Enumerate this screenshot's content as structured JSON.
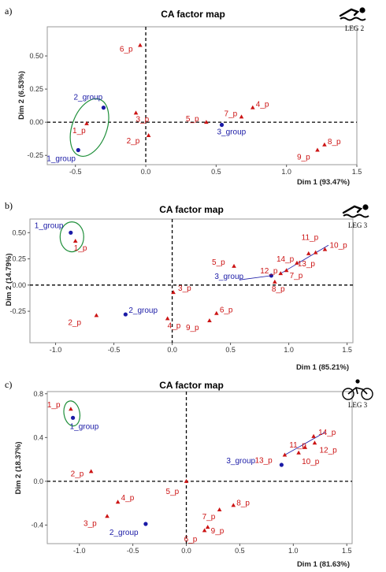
{
  "chart_data": [
    {
      "type": "scatter",
      "panel_label": "a)",
      "title": "CA factor map",
      "xlabel": "Dim 1 (93.47%)",
      "ylabel": "Dim 2 (6.53%)",
      "xlim": [
        -0.7,
        1.5
      ],
      "ylim": [
        -0.32,
        0.72
      ],
      "xticks": [
        -0.5,
        0.0,
        0.5,
        1.0,
        1.5
      ],
      "xticklabels": [
        "-0.5",
        "0.0",
        "0.5",
        "1.0",
        "1.5"
      ],
      "yticks": [
        -0.25,
        0.0,
        0.25,
        0.5
      ],
      "yticklabels": [
        "-0.25",
        "0.00",
        "0.25",
        "0.50"
      ],
      "legend_icon": "swimmer-icon",
      "legend_text": "LEG 2",
      "series": [
        {
          "name": "groups",
          "color": "#1a1aa6",
          "marker": "circle",
          "points": [
            {
              "label": "1_group",
              "x": -0.48,
              "y": -0.21
            },
            {
              "label": "2_group",
              "x": -0.3,
              "y": 0.11
            },
            {
              "label": "3_group",
              "x": 0.54,
              "y": -0.02
            }
          ]
        },
        {
          "name": "variables",
          "color": "#cc1414",
          "marker": "triangle",
          "points": [
            {
              "label": "1_p",
              "x": -0.42,
              "y": -0.01
            },
            {
              "label": "2_p",
              "x": 0.02,
              "y": -0.1
            },
            {
              "label": "3_p",
              "x": -0.07,
              "y": 0.07
            },
            {
              "label": "4_p",
              "x": 0.76,
              "y": 0.11
            },
            {
              "label": "5_p",
              "x": 0.43,
              "y": 0.0
            },
            {
              "label": "6_p",
              "x": -0.04,
              "y": 0.58
            },
            {
              "label": "7_p",
              "x": 0.68,
              "y": 0.04
            },
            {
              "label": "8_p",
              "x": 1.27,
              "y": -0.17
            },
            {
              "label": "9_p",
              "x": 1.22,
              "y": -0.21
            }
          ]
        }
      ]
    },
    {
      "type": "scatter",
      "panel_label": "b)",
      "title": "CA factor map",
      "xlabel": "Dim 1 (85.21%)",
      "ylabel": "Dim 2 (14.79%)",
      "xlim": [
        -1.22,
        1.55
      ],
      "ylim": [
        -0.55,
        0.63
      ],
      "xticks": [
        -1.0,
        -0.5,
        0.0,
        0.5,
        1.0,
        1.5
      ],
      "xticklabels": [
        "-1.0",
        "-0.5",
        "0.0",
        "0.5",
        "1.0",
        "1.5"
      ],
      "yticks": [
        -0.25,
        0.0,
        0.25,
        0.5
      ],
      "yticklabels": [
        "-0.25",
        "0.00",
        "0.25",
        "0.50"
      ],
      "legend_icon": "swimmer-icon",
      "legend_text": "LEG 3",
      "series": [
        {
          "name": "groups",
          "color": "#1a1aa6",
          "marker": "circle",
          "points": [
            {
              "label": "1_group",
              "x": -0.87,
              "y": 0.5
            },
            {
              "label": "2_group",
              "x": -0.4,
              "y": -0.28
            },
            {
              "label": "3_group",
              "x": 0.85,
              "y": 0.09
            }
          ]
        },
        {
          "name": "variables",
          "color": "#cc1414",
          "marker": "triangle",
          "points": [
            {
              "label": "1_p",
              "x": -0.83,
              "y": 0.42
            },
            {
              "label": "2_p",
              "x": -0.65,
              "y": -0.29
            },
            {
              "label": "3_p",
              "x": 0.01,
              "y": -0.07
            },
            {
              "label": "4_p",
              "x": -0.04,
              "y": -0.32
            },
            {
              "label": "5_p",
              "x": 0.53,
              "y": 0.18
            },
            {
              "label": "6_p",
              "x": 0.38,
              "y": -0.27
            },
            {
              "label": "7_p",
              "x": 0.98,
              "y": 0.14
            },
            {
              "label": "8_p",
              "x": 0.88,
              "y": 0.03
            },
            {
              "label": "9_p",
              "x": 0.32,
              "y": -0.34
            },
            {
              "label": "10_p",
              "x": 1.31,
              "y": 0.34
            },
            {
              "label": "11_p",
              "x": 1.23,
              "y": 0.31
            },
            {
              "label": "12_p",
              "x": 0.93,
              "y": 0.11
            },
            {
              "label": "13_p",
              "x": 1.17,
              "y": 0.3
            },
            {
              "label": "14_p",
              "x": 1.07,
              "y": 0.21
            }
          ]
        }
      ]
    },
    {
      "type": "scatter",
      "panel_label": "c)",
      "title": "CA factor map",
      "xlabel": "Dim 1 (81.63%)",
      "ylabel": "Dim 2 (18.37%)",
      "xlim": [
        -1.3,
        1.55
      ],
      "ylim": [
        -0.57,
        0.82
      ],
      "xticks": [
        -1.0,
        -0.5,
        0.0,
        0.5,
        1.0,
        1.5
      ],
      "xticklabels": [
        "-1.0",
        "-0.5",
        "0.0",
        "0.5",
        "1.0",
        "1.5"
      ],
      "yticks": [
        -0.4,
        0.0,
        0.4,
        0.8
      ],
      "yticklabels": [
        "-0.4",
        "0.0",
        "0.4",
        "0.8"
      ],
      "legend_icon": "cyclist-icon",
      "legend_text": "LEG 3",
      "series": [
        {
          "name": "groups",
          "color": "#1a1aa6",
          "marker": "circle",
          "points": [
            {
              "label": "1_group",
              "x": -1.06,
              "y": 0.58
            },
            {
              "label": "2_group",
              "x": -0.38,
              "y": -0.39
            },
            {
              "label": "3_group",
              "x": 0.89,
              "y": 0.15
            }
          ]
        },
        {
          "name": "variables",
          "color": "#cc1414",
          "marker": "triangle",
          "points": [
            {
              "label": "1_p",
              "x": -1.08,
              "y": 0.66
            },
            {
              "label": "2_p",
              "x": -0.89,
              "y": 0.09
            },
            {
              "label": "3_p",
              "x": -0.74,
              "y": -0.32
            },
            {
              "label": "4_p",
              "x": -0.64,
              "y": -0.19
            },
            {
              "label": "5_p",
              "x": 0.0,
              "y": 0.0
            },
            {
              "label": "6_p",
              "x": 0.17,
              "y": -0.45
            },
            {
              "label": "7_p",
              "x": 0.31,
              "y": -0.26
            },
            {
              "label": "8_p",
              "x": 0.44,
              "y": -0.22
            },
            {
              "label": "9_p",
              "x": 0.2,
              "y": -0.42
            },
            {
              "label": "10_p",
              "x": 1.05,
              "y": 0.26
            },
            {
              "label": "11_p",
              "x": 1.11,
              "y": 0.31
            },
            {
              "label": "12_p",
              "x": 1.2,
              "y": 0.35
            },
            {
              "label": "13_p",
              "x": 0.92,
              "y": 0.24
            },
            {
              "label": "14_p",
              "x": 1.19,
              "y": 0.41
            }
          ]
        }
      ]
    }
  ]
}
